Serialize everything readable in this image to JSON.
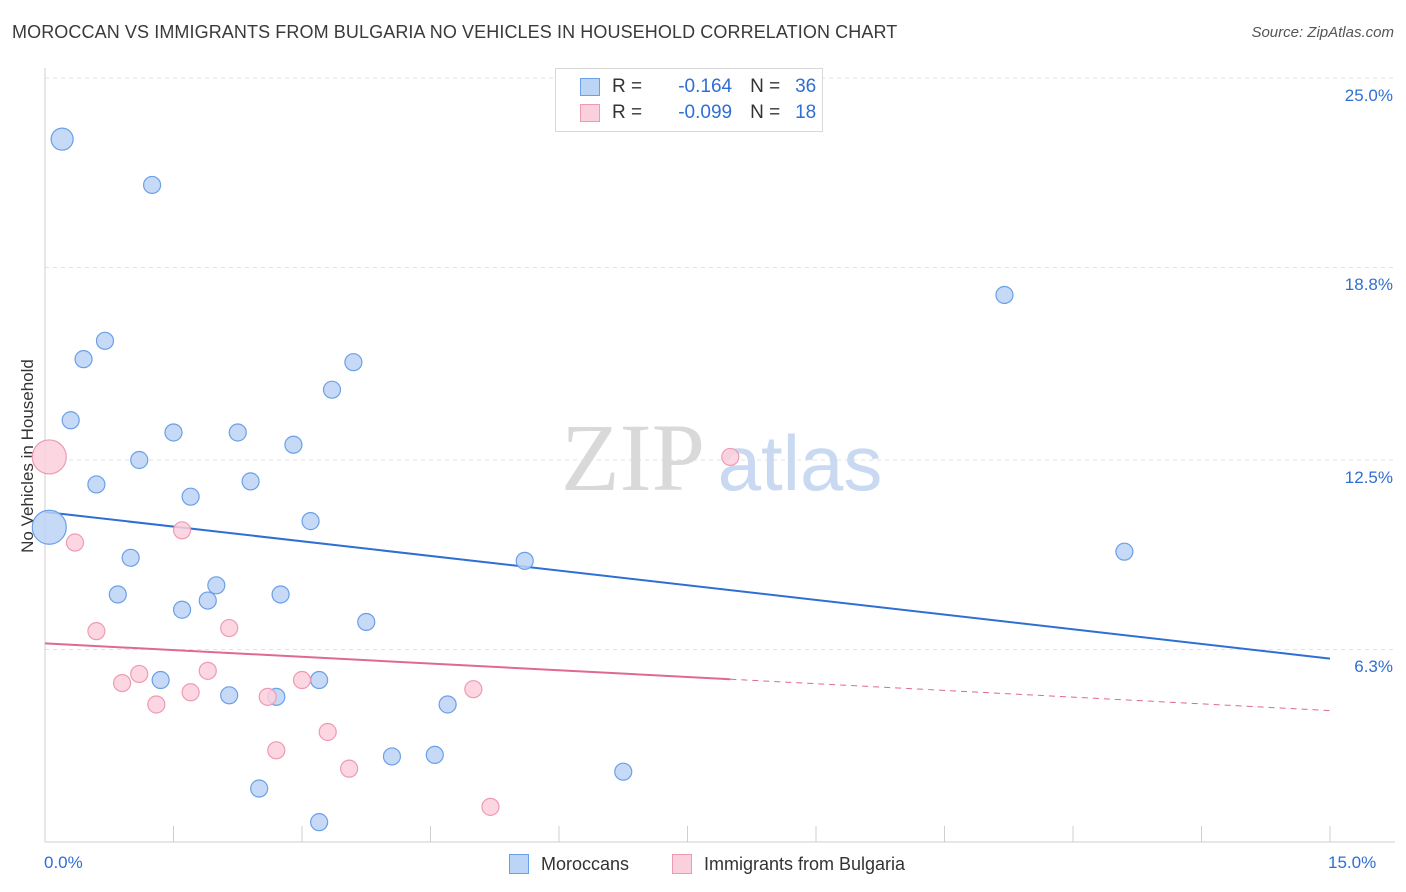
{
  "title": "MOROCCAN VS IMMIGRANTS FROM BULGARIA NO VEHICLES IN HOUSEHOLD CORRELATION CHART",
  "source": "Source: ZipAtlas.com",
  "watermark": {
    "zip": "ZIP",
    "atlas": "atlas"
  },
  "legend": {
    "r_label": "R =",
    "n_label": "N =",
    "rows": [
      {
        "r": "-0.164",
        "n": "36",
        "color": "#6aa0e6",
        "fill": "#bcd4f6"
      },
      {
        "r": "-0.099",
        "n": "18",
        "color": "#ee9ab3",
        "fill": "#fbd0dd"
      }
    ]
  },
  "bottom_legend": [
    {
      "label": "Moroccans",
      "color": "#6aa0e6",
      "fill": "#bcd4f6"
    },
    {
      "label": "Immigrants from Bulgaria",
      "color": "#ee9ab3",
      "fill": "#fbd0dd"
    }
  ],
  "chart_data": {
    "type": "scatter",
    "xlabel": "",
    "ylabel": "No Vehicles in Household",
    "xlim": [
      0,
      15
    ],
    "ylim": [
      0,
      25
    ],
    "x_tick_labels": [
      "0.0%",
      "15.0%"
    ],
    "y_ticks": [
      6.3,
      12.5,
      18.8,
      25.0
    ],
    "y_tick_labels": [
      "6.3%",
      "12.5%",
      "18.8%",
      "25.0%"
    ],
    "grid": true,
    "series": [
      {
        "name": "Moroccans",
        "color": "#6aa0e6",
        "fill": "#bcd4f6",
        "trend": {
          "x0": 0,
          "y0": 10.8,
          "x1": 15,
          "y1": 6.0,
          "solid_to": 15
        },
        "points": [
          {
            "x": 0.2,
            "y": 23.0,
            "big": 1
          },
          {
            "x": 1.25,
            "y": 21.5
          },
          {
            "x": 0.7,
            "y": 16.4
          },
          {
            "x": 0.45,
            "y": 15.8
          },
          {
            "x": 3.6,
            "y": 15.7
          },
          {
            "x": 3.35,
            "y": 14.8
          },
          {
            "x": 0.3,
            "y": 13.8
          },
          {
            "x": 1.5,
            "y": 13.4
          },
          {
            "x": 2.25,
            "y": 13.4
          },
          {
            "x": 2.9,
            "y": 13.0
          },
          {
            "x": 1.1,
            "y": 12.5
          },
          {
            "x": 0.6,
            "y": 11.7
          },
          {
            "x": 2.4,
            "y": 11.8
          },
          {
            "x": 1.7,
            "y": 11.3
          },
          {
            "x": 3.1,
            "y": 10.5
          },
          {
            "x": 0.05,
            "y": 10.3,
            "big": 2
          },
          {
            "x": 1.0,
            "y": 9.3
          },
          {
            "x": 5.6,
            "y": 9.2
          },
          {
            "x": 12.6,
            "y": 9.5
          },
          {
            "x": 2.0,
            "y": 8.4
          },
          {
            "x": 0.85,
            "y": 8.1
          },
          {
            "x": 2.75,
            "y": 8.1
          },
          {
            "x": 1.9,
            "y": 7.9
          },
          {
            "x": 1.6,
            "y": 7.6
          },
          {
            "x": 3.75,
            "y": 7.2
          },
          {
            "x": 1.35,
            "y": 5.3
          },
          {
            "x": 3.2,
            "y": 5.3
          },
          {
            "x": 2.15,
            "y": 4.8
          },
          {
            "x": 2.7,
            "y": 4.75
          },
          {
            "x": 4.7,
            "y": 4.5
          },
          {
            "x": 4.05,
            "y": 2.8
          },
          {
            "x": 4.55,
            "y": 2.85
          },
          {
            "x": 6.75,
            "y": 2.3
          },
          {
            "x": 2.5,
            "y": 1.75
          },
          {
            "x": 3.2,
            "y": 0.65
          },
          {
            "x": 11.2,
            "y": 17.9
          }
        ]
      },
      {
        "name": "Immigrants from Bulgaria",
        "color": "#ee9ab3",
        "fill": "#fbd0dd",
        "trend": {
          "x0": 0,
          "y0": 6.5,
          "x1": 15,
          "y1": 4.3,
          "solid_to": 8.0
        },
        "points": [
          {
            "x": 0.05,
            "y": 12.6,
            "big": 2
          },
          {
            "x": 8.0,
            "y": 12.6
          },
          {
            "x": 0.35,
            "y": 9.8
          },
          {
            "x": 1.6,
            "y": 10.2
          },
          {
            "x": 0.6,
            "y": 6.9
          },
          {
            "x": 2.15,
            "y": 7.0
          },
          {
            "x": 0.9,
            "y": 5.2
          },
          {
            "x": 1.1,
            "y": 5.5
          },
          {
            "x": 1.9,
            "y": 5.6
          },
          {
            "x": 3.0,
            "y": 5.3
          },
          {
            "x": 1.7,
            "y": 4.9
          },
          {
            "x": 2.6,
            "y": 4.75
          },
          {
            "x": 5.0,
            "y": 5.0
          },
          {
            "x": 1.3,
            "y": 4.5
          },
          {
            "x": 3.3,
            "y": 3.6
          },
          {
            "x": 2.7,
            "y": 3.0
          },
          {
            "x": 3.55,
            "y": 2.4
          },
          {
            "x": 5.2,
            "y": 1.15
          }
        ]
      }
    ]
  }
}
